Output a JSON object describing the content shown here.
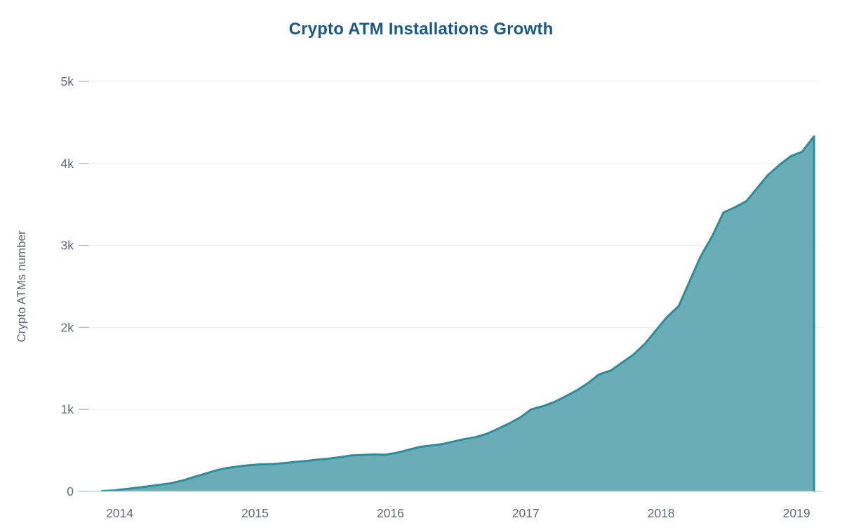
{
  "colors": {
    "title": "#1b5a85",
    "area_fill": "#5fa7b0",
    "area_stroke": "#2e8b9c",
    "axis_text": "#5f6b76",
    "grid": "#ededed",
    "tick": "#b6bfc5",
    "axis_line": "#cdd4d9"
  },
  "chart_data": {
    "type": "area",
    "title": "Crypto ATM Installations Growth",
    "xlabel": "",
    "ylabel": "Crypto ATMs number",
    "legend": "none",
    "grid": "horizontal",
    "xlim": [
      2013.79,
      2019.16
    ],
    "ylim": [
      0,
      5000
    ],
    "x_ticks": [
      {
        "value": 2014,
        "label": "2014"
      },
      {
        "value": 2015,
        "label": "2015"
      },
      {
        "value": 2016,
        "label": "2016"
      },
      {
        "value": 2017,
        "label": "2017"
      },
      {
        "value": 2018,
        "label": "2018"
      },
      {
        "value": 2019,
        "label": "2019"
      }
    ],
    "y_ticks": [
      {
        "value": 0,
        "label": "0"
      },
      {
        "value": 1000,
        "label": "1k"
      },
      {
        "value": 2000,
        "label": "2k"
      },
      {
        "value": 3000,
        "label": "3k"
      },
      {
        "value": 4000,
        "label": "4k"
      },
      {
        "value": 5000,
        "label": "5k"
      }
    ],
    "series": [
      {
        "name": "Crypto ATMs number",
        "x": [
          2013.87,
          2013.96,
          2014.04,
          2014.13,
          2014.21,
          2014.29,
          2014.38,
          2014.46,
          2014.54,
          2014.63,
          2014.71,
          2014.79,
          2014.88,
          2014.96,
          2015.04,
          2015.13,
          2015.21,
          2015.29,
          2015.38,
          2015.46,
          2015.54,
          2015.63,
          2015.71,
          2015.79,
          2015.88,
          2015.96,
          2016.04,
          2016.13,
          2016.21,
          2016.29,
          2016.38,
          2016.46,
          2016.54,
          2016.63,
          2016.71,
          2016.79,
          2016.88,
          2016.96,
          2017.04,
          2017.13,
          2017.21,
          2017.29,
          2017.38,
          2017.46,
          2017.54,
          2017.63,
          2017.71,
          2017.79,
          2017.88,
          2017.96,
          2018.04,
          2018.13,
          2018.21,
          2018.29,
          2018.38,
          2018.46,
          2018.54,
          2018.63,
          2018.71,
          2018.79,
          2018.88,
          2018.96,
          2019.04,
          2019.13
        ],
        "y": [
          5,
          12,
          28,
          45,
          62,
          80,
          100,
          130,
          170,
          215,
          255,
          285,
          305,
          320,
          330,
          333,
          345,
          358,
          372,
          388,
          398,
          418,
          438,
          444,
          452,
          448,
          468,
          505,
          540,
          558,
          575,
          605,
          635,
          662,
          700,
          760,
          830,
          902,
          1000,
          1040,
          1090,
          1155,
          1235,
          1320,
          1425,
          1475,
          1570,
          1660,
          1800,
          1960,
          2120,
          2260,
          2560,
          2860,
          3120,
          3400,
          3460,
          3540,
          3700,
          3860,
          3990,
          4090,
          4140,
          4330
        ]
      }
    ]
  }
}
